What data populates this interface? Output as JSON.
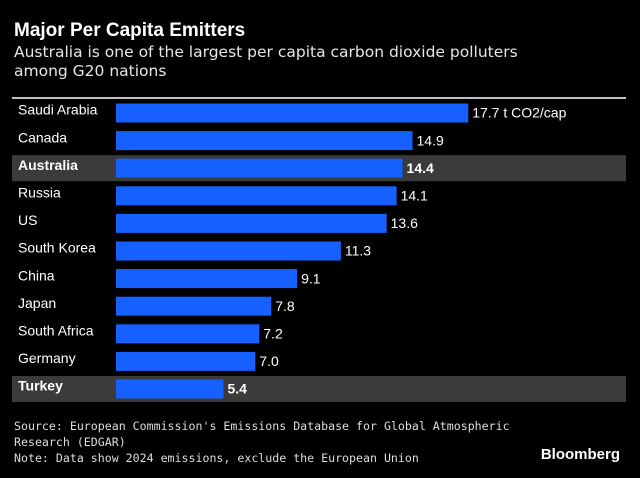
{
  "chart_data": {
    "type": "bar",
    "orientation": "horizontal",
    "title": "Major Per Capita Emitters",
    "subtitle": "Australia is one of the largest per capita carbon dioxide polluters among G20 nations",
    "categories": [
      "Saudi Arabia",
      "Canada",
      "Australia",
      "Russia",
      "US",
      "South Korea",
      "China",
      "Japan",
      "South Africa",
      "Germany",
      "Turkey"
    ],
    "values": [
      17.7,
      14.9,
      14.4,
      14.1,
      13.6,
      11.3,
      9.1,
      7.8,
      7.2,
      7.0,
      5.4
    ],
    "value_labels": [
      "17.7 t CO2/cap",
      "14.9",
      "14.4",
      "14.1",
      "13.6",
      "11.3",
      "9.1",
      "7.8",
      "7.2",
      "7.0",
      "5.4"
    ],
    "highlight": [
      2,
      10
    ],
    "color": "#1560ff",
    "xlim": [
      0,
      20
    ],
    "source": "Source: European Commission's Emissions Database for Global Atmospheric Research (EDGAR)",
    "note": "Note: Data show 2024 emissions, exclude the European Union",
    "brand": "Bloomberg"
  }
}
